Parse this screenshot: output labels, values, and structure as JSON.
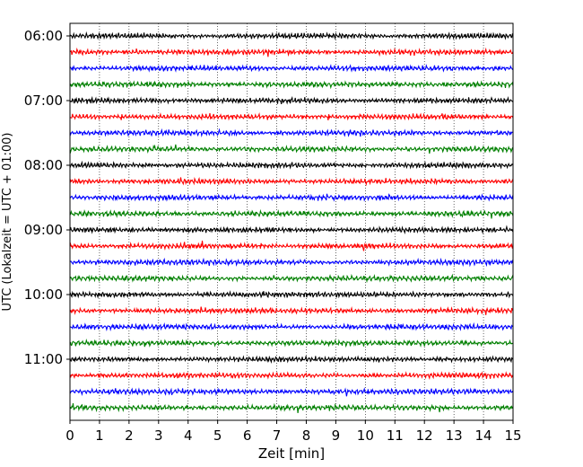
{
  "chart_data": {
    "type": "line",
    "title": "",
    "xlabel": "Zeit  [min]",
    "ylabel": "UTC (Lokalzeit = UTC + 01:00)",
    "xlim": [
      0,
      15
    ],
    "xticks": [
      0,
      1,
      2,
      3,
      4,
      5,
      6,
      7,
      8,
      9,
      10,
      11,
      12,
      13,
      14,
      15
    ],
    "xtick_labels": [
      "0",
      "1",
      "2",
      "3",
      "4",
      "5",
      "6",
      "7",
      "8",
      "9",
      "10",
      "11",
      "12",
      "13",
      "14",
      "15"
    ],
    "ytick_labels": [
      "06:00",
      "07:00",
      "08:00",
      "09:00",
      "10:00",
      "11:00"
    ],
    "grid": "vertical dotted",
    "trace_colors": [
      "#000000",
      "#ff0000",
      "#0000ff",
      "#008000"
    ],
    "trace_count": 24,
    "trace_start_times": [
      "06:00",
      "06:15",
      "06:30",
      "06:45",
      "07:00",
      "07:15",
      "07:30",
      "07:45",
      "08:00",
      "08:15",
      "08:30",
      "08:45",
      "09:00",
      "09:15",
      "09:30",
      "09:45",
      "10:00",
      "10:15",
      "10:30",
      "10:45",
      "11:00",
      "11:15",
      "11:30",
      "11:45"
    ]
  }
}
